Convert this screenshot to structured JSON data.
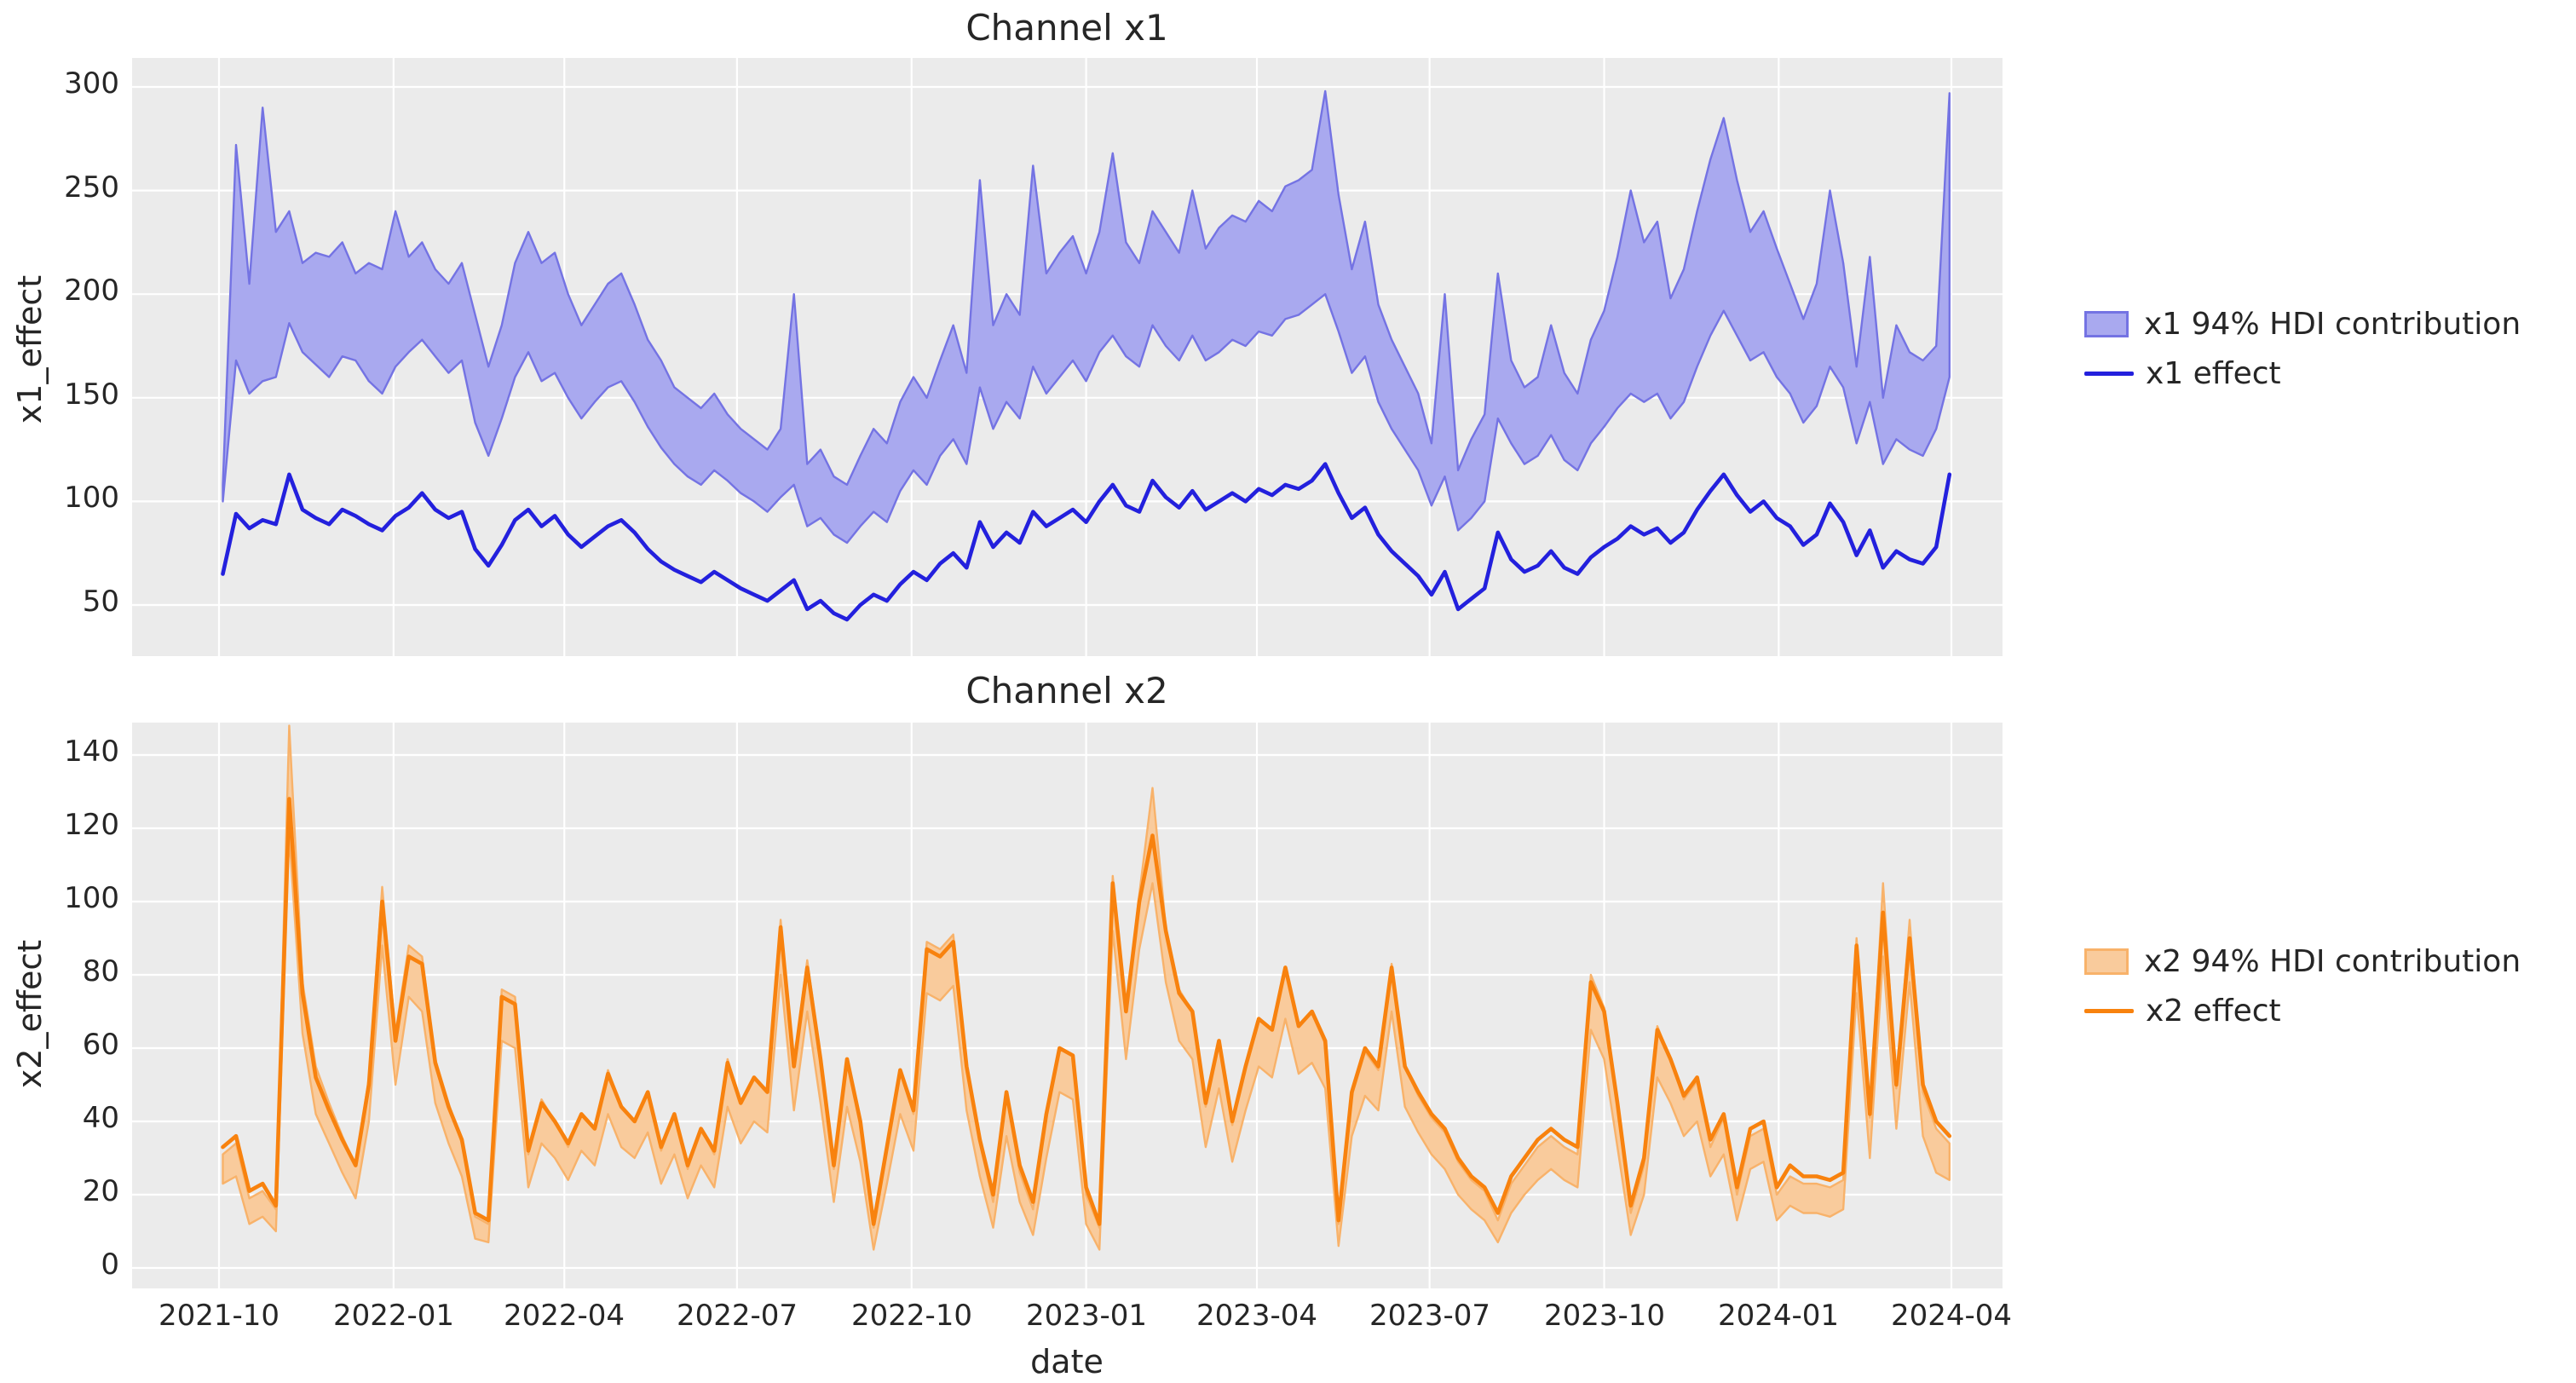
{
  "figure": {
    "xlabel": "date",
    "x_tick_labels": [
      "2021-10",
      "2022-01",
      "2022-04",
      "2022-07",
      "2022-10",
      "2023-01",
      "2023-04",
      "2023-07",
      "2023-10",
      "2024-01",
      "2024-04"
    ]
  },
  "chart_data": {
    "type": "line",
    "note": "weekly time series with 94% HDI bands, seaborn-darkgrid style, grid on, legends outside right",
    "dates": [
      "2021-10-03",
      "2021-10-10",
      "2021-10-17",
      "2021-10-24",
      "2021-10-31",
      "2021-11-07",
      "2021-11-14",
      "2021-11-21",
      "2021-11-28",
      "2021-12-05",
      "2021-12-12",
      "2021-12-19",
      "2021-12-26",
      "2022-01-02",
      "2022-01-09",
      "2022-01-16",
      "2022-01-23",
      "2022-01-30",
      "2022-02-06",
      "2022-02-13",
      "2022-02-20",
      "2022-02-27",
      "2022-03-06",
      "2022-03-13",
      "2022-03-20",
      "2022-03-27",
      "2022-04-03",
      "2022-04-10",
      "2022-04-17",
      "2022-04-24",
      "2022-05-01",
      "2022-05-08",
      "2022-05-15",
      "2022-05-22",
      "2022-05-29",
      "2022-06-05",
      "2022-06-12",
      "2022-06-19",
      "2022-06-26",
      "2022-07-03",
      "2022-07-10",
      "2022-07-17",
      "2022-07-24",
      "2022-07-31",
      "2022-08-07",
      "2022-08-14",
      "2022-08-21",
      "2022-08-28",
      "2022-09-04",
      "2022-09-11",
      "2022-09-18",
      "2022-09-25",
      "2022-10-02",
      "2022-10-09",
      "2022-10-16",
      "2022-10-23",
      "2022-10-30",
      "2022-11-06",
      "2022-11-13",
      "2022-11-20",
      "2022-11-27",
      "2022-12-04",
      "2022-12-11",
      "2022-12-18",
      "2022-12-25",
      "2023-01-01",
      "2023-01-08",
      "2023-01-15",
      "2023-01-22",
      "2023-01-29",
      "2023-02-05",
      "2023-02-12",
      "2023-02-19",
      "2023-02-26",
      "2023-03-05",
      "2023-03-12",
      "2023-03-19",
      "2023-03-26",
      "2023-04-02",
      "2023-04-09",
      "2023-04-16",
      "2023-04-23",
      "2023-04-30",
      "2023-05-07",
      "2023-05-14",
      "2023-05-21",
      "2023-05-28",
      "2023-06-04",
      "2023-06-11",
      "2023-06-18",
      "2023-06-25",
      "2023-07-02",
      "2023-07-09",
      "2023-07-16",
      "2023-07-23",
      "2023-07-30",
      "2023-08-06",
      "2023-08-13",
      "2023-08-20",
      "2023-08-27",
      "2023-09-03",
      "2023-09-10",
      "2023-09-17",
      "2023-09-24",
      "2023-10-01",
      "2023-10-08",
      "2023-10-15",
      "2023-10-22",
      "2023-10-29",
      "2023-11-05",
      "2023-11-12",
      "2023-11-19",
      "2023-11-26",
      "2023-12-03",
      "2023-12-10",
      "2023-12-17",
      "2023-12-24",
      "2023-12-31",
      "2024-01-07",
      "2024-01-14",
      "2024-01-21",
      "2024-01-28",
      "2024-02-04",
      "2024-02-11",
      "2024-02-18",
      "2024-02-25",
      "2024-03-03",
      "2024-03-10",
      "2024-03-17",
      "2024-03-24",
      "2024-03-31"
    ],
    "charts": [
      {
        "title": "Channel x1",
        "ylabel": "x1_effect",
        "ylim": [
          25,
          314
        ],
        "yticks": [
          50,
          100,
          150,
          200,
          250,
          300
        ],
        "legend": [
          "x1 94% HDI contribution",
          "x1 effect"
        ],
        "colors": {
          "line": "#2320dd",
          "band_fill": "#a9a9ef",
          "band_edge": "#7473e3"
        },
        "series": [
          {
            "name": "x1 effect",
            "values": [
              65,
              94,
              87,
              91,
              89,
              113,
              96,
              92,
              89,
              96,
              93,
              89,
              86,
              93,
              97,
              104,
              96,
              92,
              95,
              77,
              69,
              79,
              91,
              96,
              88,
              93,
              84,
              78,
              83,
              88,
              91,
              85,
              77,
              71,
              67,
              64,
              61,
              66,
              62,
              58,
              55,
              52,
              57,
              62,
              48,
              52,
              46,
              43,
              50,
              55,
              52,
              60,
              66,
              62,
              70,
              75,
              68,
              90,
              78,
              85,
              80,
              95,
              88,
              92,
              96,
              90,
              100,
              108,
              98,
              95,
              110,
              102,
              97,
              105,
              96,
              100,
              104,
              100,
              106,
              103,
              108,
              106,
              110,
              118,
              104,
              92,
              97,
              84,
              76,
              70,
              64,
              55,
              66,
              48,
              53,
              58,
              85,
              72,
              66,
              69,
              76,
              68,
              65,
              73,
              78,
              82,
              88,
              84,
              87,
              80,
              85,
              96,
              105,
              113,
              103,
              95,
              100,
              92,
              88,
              79,
              84,
              99,
              90,
              74,
              86,
              68,
              76,
              72,
              70,
              78,
              113
            ]
          },
          {
            "name": "x1 94% HDI lower",
            "values": [
              100,
              168,
              152,
              158,
              160,
              186,
              172,
              166,
              160,
              170,
              168,
              158,
              152,
              165,
              172,
              178,
              170,
              162,
              168,
              138,
              122,
              140,
              160,
              172,
              158,
              162,
              150,
              140,
              148,
              155,
              158,
              148,
              136,
              126,
              118,
              112,
              108,
              115,
              110,
              104,
              100,
              95,
              102,
              108,
              88,
              92,
              84,
              80,
              88,
              95,
              90,
              105,
              115,
              108,
              122,
              130,
              118,
              155,
              135,
              148,
              140,
              165,
              152,
              160,
              168,
              158,
              172,
              180,
              170,
              165,
              185,
              175,
              168,
              180,
              168,
              172,
              178,
              175,
              182,
              180,
              188,
              190,
              195,
              200,
              182,
              162,
              170,
              148,
              135,
              125,
              115,
              98,
              112,
              86,
              92,
              100,
              140,
              128,
              118,
              122,
              132,
              120,
              115,
              128,
              136,
              145,
              152,
              148,
              152,
              140,
              148,
              165,
              180,
              192,
              180,
              168,
              172,
              160,
              152,
              138,
              146,
              165,
              155,
              128,
              148,
              118,
              130,
              125,
              122,
              135,
              160
            ]
          },
          {
            "name": "x1 94% HDI upper",
            "values": [
              108,
              272,
              205,
              290,
              230,
              240,
              215,
              220,
              218,
              225,
              210,
              215,
              212,
              240,
              218,
              225,
              212,
              205,
              215,
              190,
              165,
              185,
              215,
              230,
              215,
              220,
              200,
              185,
              195,
              205,
              210,
              195,
              178,
              168,
              155,
              150,
              145,
              152,
              142,
              135,
              130,
              125,
              135,
              200,
              118,
              125,
              112,
              108,
              122,
              135,
              128,
              148,
              160,
              150,
              168,
              185,
              162,
              255,
              185,
              200,
              190,
              262,
              210,
              220,
              228,
              210,
              230,
              268,
              225,
              215,
              240,
              230,
              220,
              250,
              222,
              232,
              238,
              235,
              245,
              240,
              252,
              255,
              260,
              298,
              248,
              212,
              235,
              195,
              178,
              165,
              152,
              128,
              200,
              115,
              130,
              142,
              210,
              168,
              155,
              160,
              185,
              162,
              152,
              178,
              192,
              218,
              250,
              225,
              235,
              198,
              212,
              240,
              265,
              285,
              255,
              230,
              240,
              222,
              205,
              188,
              205,
              250,
              215,
              165,
              218,
              150,
              185,
              172,
              168,
              175,
              297
            ]
          }
        ]
      },
      {
        "title": "Channel x2",
        "ylabel": "x2_effect",
        "ylim": [
          -6,
          149
        ],
        "yticks": [
          0,
          20,
          40,
          60,
          80,
          100,
          120,
          140
        ],
        "legend": [
          "x2 94% HDI contribution",
          "x2 effect"
        ],
        "colors": {
          "line": "#f8820e",
          "band_fill": "#f9cb9c",
          "band_edge": "#f8b26a"
        },
        "series": [
          {
            "name": "x2 effect",
            "values": [
              33,
              36,
              21,
              23,
              17,
              128,
              75,
              52,
              43,
              35,
              28,
              50,
              100,
              62,
              85,
              83,
              56,
              44,
              35,
              15,
              13,
              74,
              72,
              32,
              45,
              40,
              34,
              42,
              38,
              53,
              44,
              40,
              48,
              33,
              42,
              28,
              38,
              32,
              56,
              45,
              52,
              48,
              93,
              55,
              82,
              57,
              28,
              57,
              40,
              12,
              33,
              54,
              43,
              87,
              85,
              89,
              55,
              35,
              20,
              48,
              28,
              18,
              42,
              60,
              58,
              22,
              12,
              105,
              70,
              100,
              118,
              92,
              75,
              70,
              45,
              62,
              40,
              55,
              68,
              65,
              82,
              66,
              70,
              62,
              13,
              48,
              60,
              55,
              82,
              55,
              48,
              42,
              38,
              30,
              25,
              22,
              15,
              25,
              30,
              35,
              38,
              35,
              33,
              78,
              70,
              45,
              17,
              30,
              65,
              57,
              47,
              52,
              35,
              42,
              22,
              38,
              40,
              22,
              28,
              25,
              25,
              24,
              26,
              88,
              42,
              97,
              50,
              90,
              50,
              40,
              36
            ]
          },
          {
            "name": "x2 94% HDI lower",
            "values": [
              23,
              25,
              12,
              14,
              10,
              118,
              64,
              42,
              34,
              26,
              19,
              40,
              88,
              50,
              74,
              70,
              45,
              34,
              25,
              8,
              7,
              62,
              60,
              22,
              34,
              30,
              24,
              32,
              28,
              42,
              33,
              30,
              37,
              23,
              31,
              19,
              28,
              22,
              44,
              34,
              40,
              37,
              80,
              43,
              70,
              45,
              18,
              44,
              29,
              5,
              23,
              42,
              32,
              75,
              73,
              77,
              43,
              25,
              11,
              36,
              18,
              9,
              30,
              48,
              46,
              12,
              5,
              92,
              57,
              87,
              105,
              78,
              62,
              57,
              33,
              49,
              29,
              43,
              55,
              52,
              68,
              53,
              56,
              49,
              6,
              36,
              47,
              43,
              70,
              44,
              37,
              31,
              27,
              20,
              16,
              13,
              7,
              15,
              20,
              24,
              27,
              24,
              22,
              65,
              57,
              33,
              9,
              20,
              52,
              45,
              36,
              40,
              25,
              31,
              13,
              27,
              29,
              13,
              17,
              15,
              15,
              14,
              16,
              75,
              30,
              85,
              38,
              78,
              36,
              26,
              24
            ]
          },
          {
            "name": "x2 94% HDI upper",
            "values": [
              31,
              34,
              19,
              21,
              16,
              148,
              78,
              55,
              45,
              36,
              28,
              52,
              104,
              64,
              88,
              85,
              57,
              45,
              34,
              14,
              12,
              76,
              74,
              31,
              46,
              40,
              33,
              42,
              38,
              54,
              44,
              40,
              48,
              32,
              42,
              27,
              38,
              31,
              57,
              45,
              52,
              48,
              95,
              56,
              84,
              58,
              27,
              57,
              39,
              11,
              33,
              54,
              42,
              89,
              87,
              91,
              55,
              34,
              18,
              47,
              26,
              16,
              41,
              60,
              58,
              20,
              11,
              107,
              70,
              102,
              131,
              93,
              76,
              70,
              44,
              62,
              39,
              55,
              68,
              65,
              82,
              66,
              70,
              61,
              12,
              47,
              59,
              54,
              83,
              55,
              47,
              41,
              37,
              29,
              24,
              21,
              13,
              23,
              28,
              33,
              36,
              33,
              31,
              80,
              71,
              44,
              15,
              28,
              66,
              57,
              46,
              51,
              33,
              41,
              20,
              36,
              38,
              20,
              25,
              23,
              23,
              22,
              24,
              90,
              41,
              105,
              49,
              95,
              48,
              38,
              34
            ]
          }
        ]
      }
    ]
  }
}
